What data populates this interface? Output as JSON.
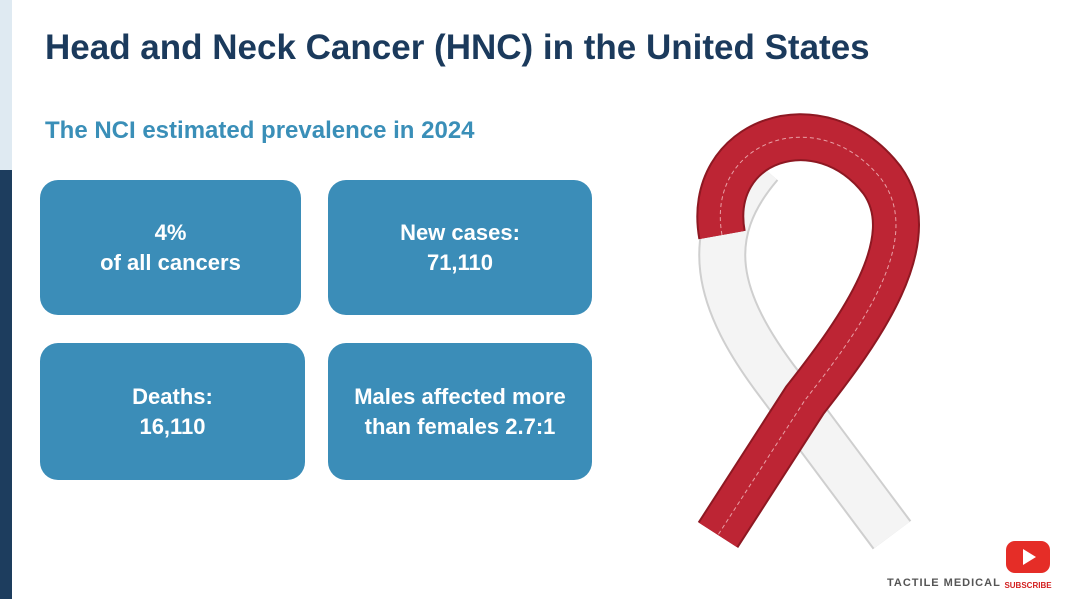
{
  "header": {
    "title": "Head and Neck Cancer (HNC) in the United States",
    "subtitle": "The NCI estimated prevalence in 2024"
  },
  "boxes": [
    {
      "lines": [
        "4%",
        "of all cancers"
      ]
    },
    {
      "lines": [
        "New cases:",
        "71,110"
      ]
    },
    {
      "lines": [
        "Deaths:",
        "16,110"
      ]
    },
    {
      "lines": [
        "Males affected more",
        "than females 2.7:1"
      ]
    }
  ],
  "footer": {
    "brand": "TACTILE MEDICAL",
    "subscribe": "SUBSCRIBE"
  }
}
